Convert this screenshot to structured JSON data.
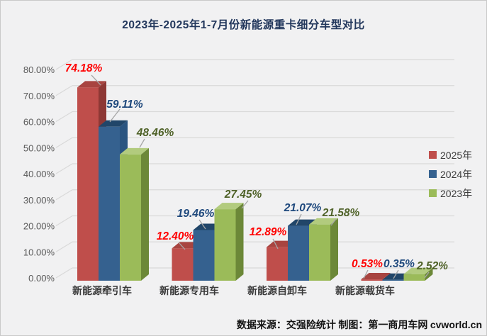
{
  "title": "2023年-2025年1-7月份新能源重卡细分车型对比",
  "footer": {
    "source": "数据来源：交强险统计 制图：第一商用车网",
    "brand": "cvworld.cn"
  },
  "colors": {
    "background": "#f1f1f2",
    "gridline": "#d9d9d9",
    "axis_text": "#595959",
    "title_text": "#22375c",
    "leader_line": "#a6a6a6"
  },
  "chart_data": {
    "type": "bar",
    "style": "3d-clustered",
    "title": "2023年-2025年1-7月份新能源重卡细分车型对比",
    "categories": [
      "新能源牵引车",
      "新能源专用车",
      "新能源自卸车",
      "新能源载货车"
    ],
    "series": [
      {
        "name": "2025年",
        "values": [
          74.18,
          12.4,
          12.89,
          0.53
        ],
        "labels": [
          "74.18%",
          "12.40%",
          "12.89%",
          "0.53%"
        ],
        "color": {
          "front": "#bf4e4b",
          "side": "#8e3835",
          "top": "#a84440"
        },
        "label_color": "#ff0000"
      },
      {
        "name": "2024年",
        "values": [
          59.11,
          19.46,
          21.07,
          0.35
        ],
        "labels": [
          "59.11%",
          "19.46%",
          "21.07%",
          "0.35%"
        ],
        "color": {
          "front": "#35618f",
          "side": "#2a5480",
          "top": "#214669"
        },
        "label_color": "#1f497d"
      },
      {
        "name": "2023年",
        "values": [
          48.46,
          27.45,
          21.58,
          2.52
        ],
        "labels": [
          "48.46%",
          "27.45%",
          "21.58%",
          "2.52%"
        ],
        "color": {
          "front": "#9bbb59",
          "side": "#6c8838",
          "top": "#b2cb7e"
        },
        "label_color": "#4f6228"
      }
    ],
    "ylim": [
      0,
      80
    ],
    "ytick_step": 10,
    "ytick_labels": [
      "0.00%",
      "10.00%",
      "20.00%",
      "30.00%",
      "40.00%",
      "50.00%",
      "60.00%",
      "70.00%",
      "80.00%"
    ],
    "grid": true,
    "legend_position": "right"
  }
}
